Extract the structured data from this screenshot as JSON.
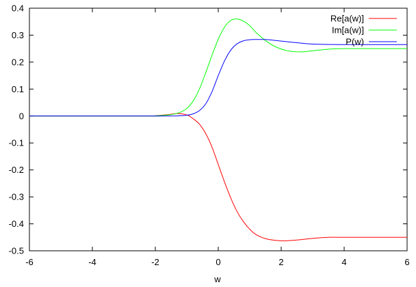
{
  "chart_data": {
    "type": "line",
    "title": "",
    "xlabel": "w",
    "ylabel": "",
    "xlim": [
      -6,
      6
    ],
    "ylim": [
      -0.5,
      0.4
    ],
    "xticks": [
      -6,
      -4,
      -2,
      0,
      2,
      4,
      6
    ],
    "yticks": [
      0.4,
      0.3,
      0.2,
      0.1,
      0,
      -0.1,
      -0.2,
      -0.3,
      -0.4,
      -0.5
    ],
    "xtick_labels": [
      "-6",
      "-4",
      "-2",
      "0",
      "2",
      "4",
      "6"
    ],
    "ytick_labels": [
      "0.4",
      "0.3",
      "0.2",
      "0.1",
      "0",
      "-0.1",
      "-0.2",
      "-0.3",
      "-0.4",
      "-0.5"
    ],
    "grid": false,
    "legend_position": "top-right",
    "series": [
      {
        "name": "Re[a(w)]",
        "color": "#ff0000",
        "x": [
          -6,
          -2.2,
          -2.0,
          -1.6,
          -1.3,
          -1.0,
          -0.8,
          -0.6,
          -0.4,
          -0.2,
          0.0,
          0.2,
          0.4,
          0.6,
          0.8,
          1.0,
          1.2,
          1.5,
          1.8,
          2.1,
          2.5,
          3.0,
          3.5,
          4.0,
          5.0,
          6.0
        ],
        "y": [
          0,
          0,
          0.001,
          0.005,
          0.009,
          0.004,
          -0.01,
          -0.03,
          -0.065,
          -0.115,
          -0.18,
          -0.245,
          -0.305,
          -0.355,
          -0.392,
          -0.42,
          -0.44,
          -0.455,
          -0.461,
          -0.463,
          -0.46,
          -0.454,
          -0.45,
          -0.45,
          -0.45,
          -0.45
        ]
      },
      {
        "name": "Im[a(w)]",
        "color": "#00ff00",
        "x": [
          -6,
          -2.2,
          -2.0,
          -1.6,
          -1.3,
          -1.0,
          -0.8,
          -0.6,
          -0.4,
          -0.2,
          0.0,
          0.2,
          0.4,
          0.6,
          0.8,
          1.0,
          1.2,
          1.5,
          1.8,
          2.2,
          2.6,
          3.0,
          3.5,
          4.0,
          5.0,
          6.0
        ],
        "y": [
          0,
          0,
          0.001,
          0.004,
          0.01,
          0.028,
          0.055,
          0.1,
          0.16,
          0.225,
          0.285,
          0.33,
          0.355,
          0.36,
          0.352,
          0.335,
          0.31,
          0.28,
          0.258,
          0.242,
          0.238,
          0.242,
          0.248,
          0.25,
          0.25,
          0.25
        ]
      },
      {
        "name": "P(w)",
        "color": "#0000ff",
        "x": [
          -6,
          -2.0,
          -1.5,
          -1.2,
          -1.0,
          -0.8,
          -0.6,
          -0.4,
          -0.2,
          0.0,
          0.2,
          0.4,
          0.6,
          0.8,
          1.0,
          1.2,
          1.4,
          1.6,
          2.0,
          2.5,
          3.0,
          4.0,
          5.0,
          6.0
        ],
        "y": [
          0,
          0,
          0,
          0.001,
          0.003,
          0.008,
          0.02,
          0.045,
          0.09,
          0.15,
          0.205,
          0.245,
          0.268,
          0.279,
          0.283,
          0.284,
          0.284,
          0.283,
          0.278,
          0.272,
          0.267,
          0.265,
          0.265,
          0.265
        ]
      }
    ]
  }
}
